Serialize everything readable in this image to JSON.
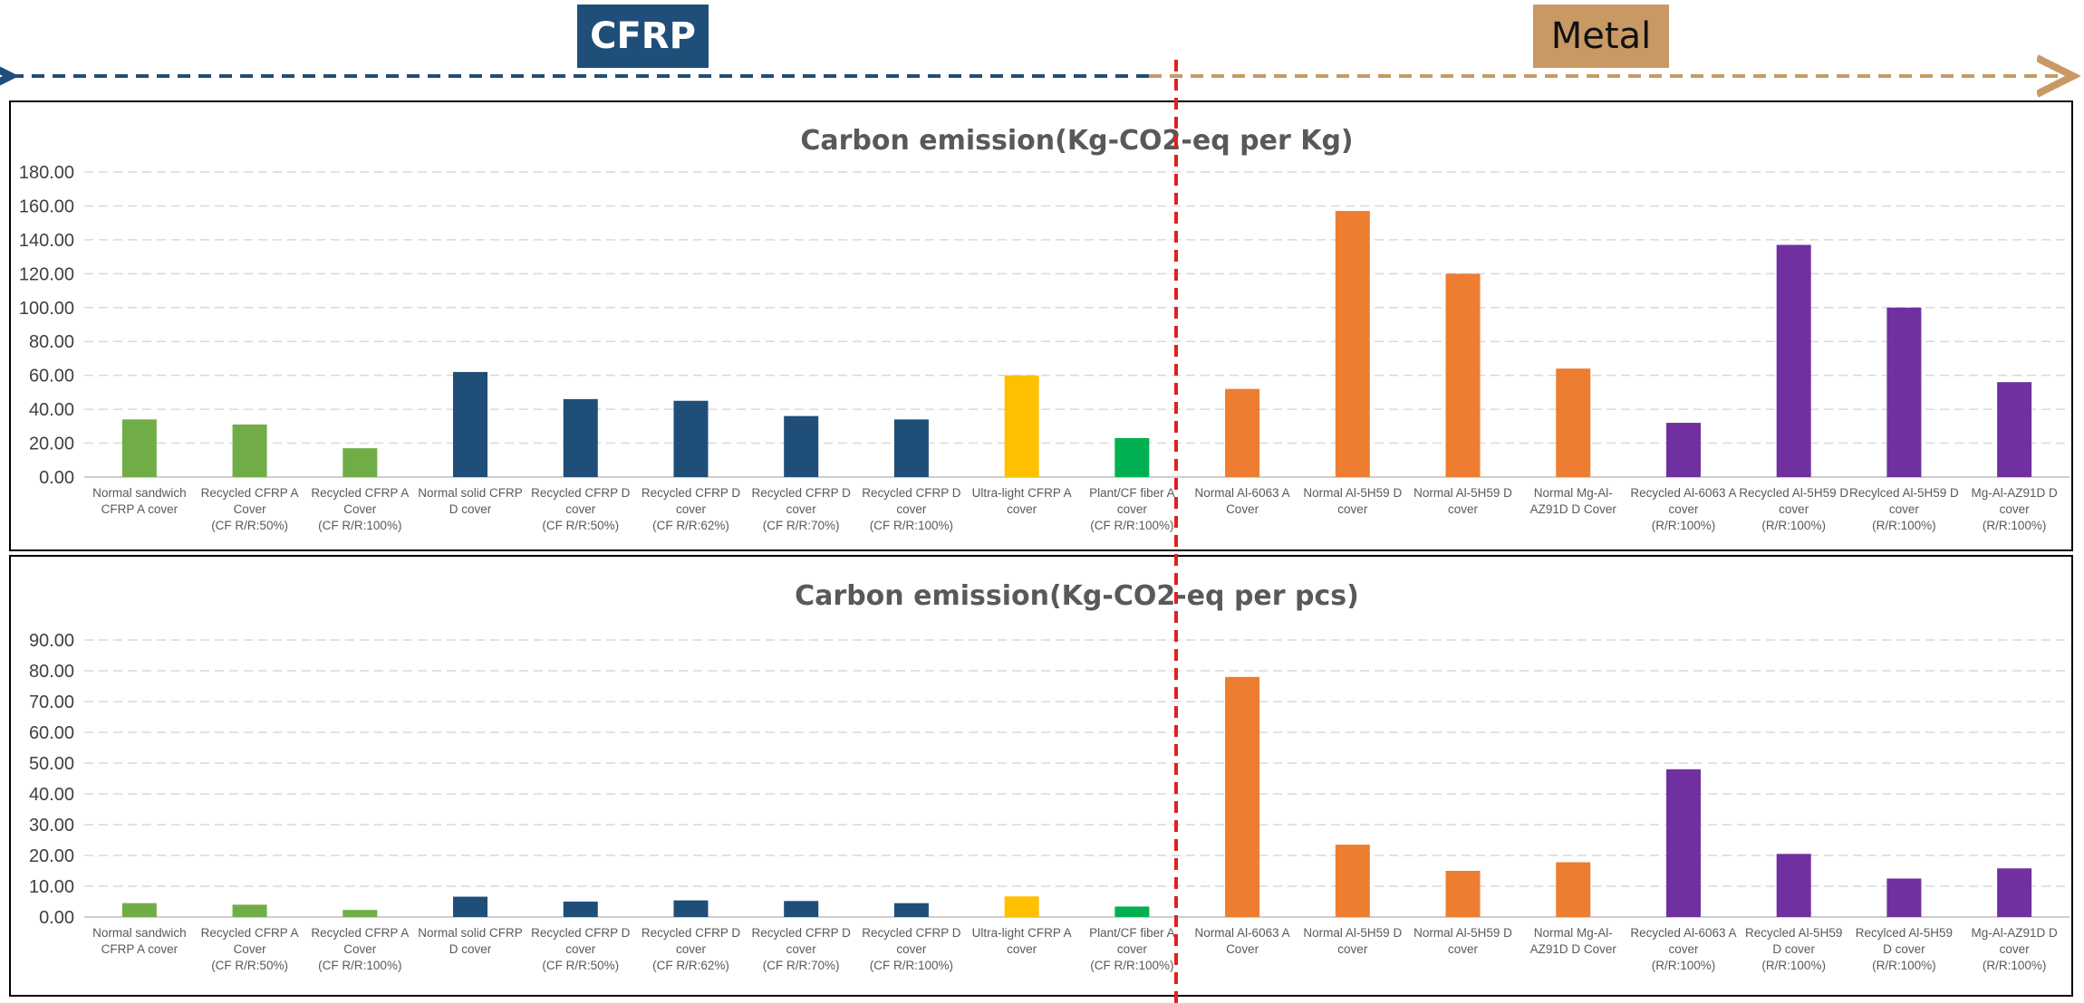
{
  "header": {
    "cfrp_label": "CFRP",
    "metal_label": "Metal",
    "colors": {
      "cfrp": "#1f4e79",
      "metal": "#c99964",
      "divider": "#e02020"
    }
  },
  "colors": {
    "green": "#70ad47",
    "navy": "#1f4e79",
    "yellow": "#ffc000",
    "bright_green": "#00b050",
    "orange": "#ed7d31",
    "purple": "#7030a0"
  },
  "chart_data": [
    {
      "type": "bar",
      "title": "Carbon emission(Kg-CO2-eq per Kg)",
      "ylim": [
        0,
        180
      ],
      "yticks": [
        "0.00",
        "20.00",
        "40.00",
        "60.00",
        "80.00",
        "100.00",
        "120.00",
        "140.00",
        "160.00",
        "180.00"
      ],
      "grid": true,
      "categories": [
        [
          "Normal sandwich",
          "CFRP A cover"
        ],
        [
          "Recycled CFRP A",
          "Cover",
          "(CF R/R:50%)"
        ],
        [
          "Recycled CFRP A",
          "Cover",
          "(CF R/R:100%)"
        ],
        [
          "Normal solid CFRP",
          "D cover"
        ],
        [
          "Recycled CFRP D",
          "cover",
          "(CF R/R:50%)"
        ],
        [
          "Recycled CFRP D",
          "cover",
          "(CF R/R:62%)"
        ],
        [
          "Recycled CFRP D",
          "cover",
          "(CF R/R:70%)"
        ],
        [
          "Recycled CFRP D",
          "cover",
          "(CF R/R:100%)"
        ],
        [
          "Ultra-light CFRP A",
          "cover"
        ],
        [
          "Plant/CF fiber A",
          "cover",
          "(CF R/R:100%)"
        ],
        [
          "Normal Al-6063 A",
          "Cover"
        ],
        [
          "Normal Al-5H59 D",
          "cover"
        ],
        [
          "Normal Al-5H59 D",
          "cover"
        ],
        [
          "Normal Mg-Al-",
          "AZ91D D Cover"
        ],
        [
          "Recycled Al-6063 A",
          "cover",
          "(R/R:100%)"
        ],
        [
          "Recycled Al-5H59 D",
          "cover",
          "(R/R:100%)"
        ],
        [
          "Recylced Al-5H59 D",
          "cover",
          "(R/R:100%)"
        ],
        [
          "Mg-Al-AZ91D D",
          "cover",
          "(R/R:100%)"
        ]
      ],
      "values": [
        34,
        31,
        17,
        62,
        46,
        45,
        36,
        34,
        60,
        23,
        52,
        157,
        120,
        64,
        32,
        137,
        100,
        56
      ],
      "colors": [
        "green",
        "green",
        "green",
        "navy",
        "navy",
        "navy",
        "navy",
        "navy",
        "yellow",
        "bright_green",
        "orange",
        "orange",
        "orange",
        "orange",
        "purple",
        "purple",
        "purple",
        "purple"
      ]
    },
    {
      "type": "bar",
      "title": "Carbon emission(Kg-CO2-eq per pcs)",
      "ylim": [
        0,
        90
      ],
      "yticks": [
        "0.00",
        "10.00",
        "20.00",
        "30.00",
        "40.00",
        "50.00",
        "60.00",
        "70.00",
        "80.00",
        "90.00"
      ],
      "grid": true,
      "categories": [
        [
          "Normal sandwich",
          "CFRP A cover"
        ],
        [
          "Recycled CFRP A",
          "Cover",
          "(CF R/R:50%)"
        ],
        [
          "Recycled CFRP A",
          "Cover",
          "(CF R/R:100%)"
        ],
        [
          "Normal solid CFRP",
          "D cover"
        ],
        [
          "Recycled CFRP D",
          "cover",
          "(CF R/R:50%)"
        ],
        [
          "Recycled CFRP D",
          "cover",
          "(CF R/R:62%)"
        ],
        [
          "Recycled CFRP D",
          "cover",
          "(CF R/R:70%)"
        ],
        [
          "Recycled CFRP D",
          "cover",
          "(CF R/R:100%)"
        ],
        [
          "Ultra-light CFRP A",
          "cover"
        ],
        [
          "Plant/CF fiber A",
          "cover",
          "(CF R/R:100%)"
        ],
        [
          "Normal Al-6063 A",
          "Cover"
        ],
        [
          "Normal Al-5H59 D",
          "cover"
        ],
        [
          "Normal Al-5H59 D",
          "cover"
        ],
        [
          "Normal Mg-Al-",
          "AZ91D D Cover"
        ],
        [
          "Recycled Al-6063 A",
          "cover",
          "(R/R:100%)"
        ],
        [
          "Recycled Al-5H59",
          "D cover",
          "(R/R:100%)"
        ],
        [
          "Recylced Al-5H59",
          "D cover",
          "(R/R:100%)"
        ],
        [
          "Mg-Al-AZ91D D",
          "cover",
          "(R/R:100%)"
        ]
      ],
      "values": [
        4.5,
        4.0,
        2.3,
        6.6,
        5.0,
        5.4,
        5.2,
        4.5,
        6.7,
        3.4,
        78,
        23.5,
        15,
        17.8,
        48,
        20.5,
        12.5,
        15.8
      ],
      "colors": [
        "green",
        "green",
        "green",
        "navy",
        "navy",
        "navy",
        "navy",
        "navy",
        "yellow",
        "bright_green",
        "orange",
        "orange",
        "orange",
        "orange",
        "purple",
        "purple",
        "purple",
        "purple"
      ]
    }
  ]
}
